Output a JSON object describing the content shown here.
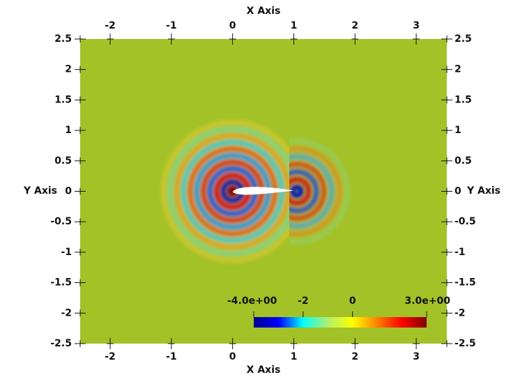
{
  "chart_data": {
    "type": "field",
    "xlabel": "X Axis",
    "ylabel": "Y Axis",
    "xlim": [
      -2.49,
      3.5
    ],
    "ylim": [
      -2.5,
      2.5
    ],
    "xticks": [
      -2,
      -1,
      0,
      1,
      2,
      3
    ],
    "yticks": [
      -2.5,
      -2,
      -1.5,
      -1,
      -0.5,
      0,
      0.5,
      1,
      1.5,
      2,
      2.5
    ],
    "background": "#a3c227",
    "colorbar": {
      "range": [
        -4,
        3
      ],
      "ticks": [
        {
          "value": -4,
          "label": "-4.0e+00"
        },
        -2,
        0,
        {
          "value": 3,
          "label": "3.0e+00"
        }
      ],
      "colors": [
        "#00008f",
        "#0000ff",
        "#00ffff",
        "#b0f070",
        "#ffff00",
        "#ff8000",
        "#ff0000",
        "#800000"
      ]
    }
  }
}
